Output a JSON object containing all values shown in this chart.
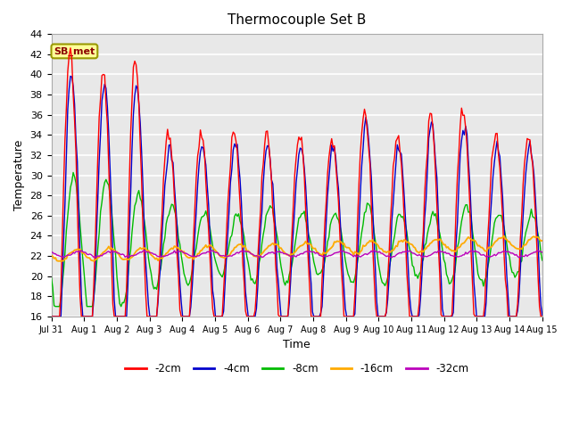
{
  "title": "Thermocouple Set B",
  "xlabel": "Time",
  "ylabel": "Temperature",
  "ylim": [
    16,
    44
  ],
  "yticks": [
    16,
    18,
    20,
    22,
    24,
    26,
    28,
    30,
    32,
    34,
    36,
    38,
    40,
    42,
    44
  ],
  "legend_label": "SB_met",
  "legend_entries": [
    "-2cm",
    "-4cm",
    "-8cm",
    "-16cm",
    "-32cm"
  ],
  "line_colors": [
    "#ff0000",
    "#0000cc",
    "#00bb00",
    "#ffaa00",
    "#bb00bb"
  ],
  "plot_bg_color": "#e8e8e8",
  "xtick_labels": [
    "Jul 31",
    "Aug 1",
    "Aug 2",
    "Aug 3",
    "Aug 4",
    "Aug 5",
    "Aug 6",
    "Aug 7",
    "Aug 8",
    "Aug 9",
    "Aug 10",
    "Aug 11",
    "Aug 12",
    "Aug 13",
    "Aug 14",
    "Aug 15"
  ],
  "annotation_color": "#8b0000",
  "annotation_bg": "#ffff99",
  "annotation_edge": "#999900"
}
